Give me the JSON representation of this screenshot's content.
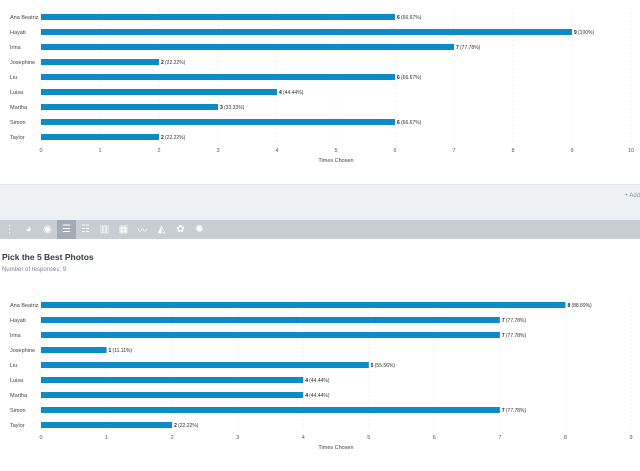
{
  "chart_data": [
    {
      "type": "bar",
      "orientation": "horizontal",
      "categories": [
        "Ana Beatriz",
        "Hayati",
        "Irina",
        "Josephine",
        "Liu",
        "Luisa",
        "Martha",
        "Simon",
        "Taylor"
      ],
      "values": [
        6,
        9,
        7,
        2,
        6,
        4,
        3,
        6,
        2
      ],
      "value_labels": [
        "(66.67%)",
        "(100%)",
        "(77.78%)",
        "(22.22%)",
        "(66.67%)",
        "(44.44%)",
        "(33.33%)",
        "(66.67%)",
        "(22.22%)"
      ],
      "xlabel": "Times Chosen",
      "xlim": [
        0,
        10
      ],
      "ticks": [
        "0",
        "1",
        "2",
        "3",
        "4",
        "5",
        "6",
        "7",
        "8",
        "9",
        "10"
      ],
      "grid": true,
      "bar_color": "#0e8bc6"
    },
    {
      "type": "bar",
      "orientation": "horizontal",
      "categories": [
        "Ana Beatriz",
        "Hayati",
        "Irina",
        "Josephine",
        "Liu",
        "Luisa",
        "Martha",
        "Simon",
        "Taylor"
      ],
      "values": [
        8,
        7,
        7,
        1,
        5,
        4,
        4,
        7,
        2
      ],
      "value_labels": [
        "(88.89%)",
        "(77.78%)",
        "(77.78%)",
        "(11.11%)",
        "(55.56%)",
        "(44.44%)",
        "(44.44%)",
        "(77.78%)",
        "(22.22%)"
      ],
      "xlabel": "Times Chosen",
      "xlim": [
        0,
        9
      ],
      "ticks": [
        "0",
        "1",
        "2",
        "3",
        "4",
        "5",
        "6",
        "7",
        "8",
        "9"
      ],
      "grid": true,
      "bar_color": "#0e8bc6"
    }
  ],
  "add_link": "+ Add",
  "toolbar": {
    "buttons": [
      {
        "icon": "grid-icon",
        "glyph": "⋮"
      },
      {
        "icon": "pie-chart-icon",
        "glyph": "◕"
      },
      {
        "icon": "donut-chart-icon",
        "glyph": "◉"
      },
      {
        "icon": "horizontal-bar-chart-icon",
        "glyph": "☰",
        "active": true
      },
      {
        "icon": "stacked-bar-chart-icon",
        "glyph": "☷"
      },
      {
        "icon": "vertical-bar-chart-icon",
        "glyph": "▥"
      },
      {
        "icon": "stacked-column-chart-icon",
        "glyph": "▦"
      },
      {
        "icon": "line-chart-icon",
        "glyph": "〰"
      },
      {
        "icon": "area-chart-icon",
        "glyph": "◭"
      },
      {
        "icon": "radar-chart-icon",
        "glyph": "✿"
      },
      {
        "icon": "sparkle-chart-icon",
        "glyph": "✺"
      }
    ]
  },
  "question": {
    "title": "Pick the 5 Best Photos",
    "responses": "Number of responses: 9"
  }
}
